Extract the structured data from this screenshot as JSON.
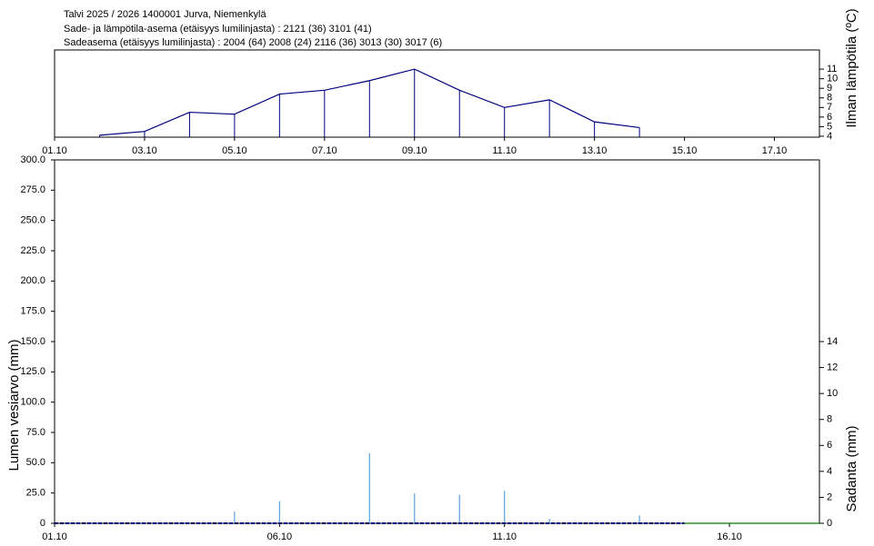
{
  "header": {
    "lines": [
      "Talvi 2025 / 2026 1400001 Jurva, Niemenkylä",
      "Sade- ja lämpötila-asema (etäisyys lumilinjasta) :  2121 (36) 3101 (41)",
      "Sadeasema (etäisyys lumilinjasta) :  2004 (64) 2008 (24) 2116 (36) 3013 (30) 3017 (6)"
    ]
  },
  "chart_data": [
    {
      "type": "line",
      "y2_label": "Ilman lämpötila (ºC)",
      "color": "#00007f",
      "x": [
        2,
        3,
        4,
        5,
        6,
        7,
        8,
        9,
        10,
        11,
        12,
        13,
        14
      ],
      "values": [
        4.1,
        4.5,
        6.5,
        6.3,
        8.4,
        8.8,
        9.8,
        11,
        8.8,
        7,
        7.8,
        5.5,
        4.9
      ],
      "xlim": [
        1,
        18
      ],
      "xticks": [
        {
          "value": 1,
          "label": "01.10"
        },
        {
          "value": 3,
          "label": "03.10"
        },
        {
          "value": 5,
          "label": "05.10"
        },
        {
          "value": 7,
          "label": "07.10"
        },
        {
          "value": 9,
          "label": "09.10"
        },
        {
          "value": 11,
          "label": "11.10"
        },
        {
          "value": 13,
          "label": "13.10"
        },
        {
          "value": 15,
          "label": "15.10"
        },
        {
          "value": 17,
          "label": "17.10"
        }
      ],
      "ylim": [
        3.9,
        13
      ],
      "yticks": [
        4,
        5,
        6,
        7,
        8,
        9,
        10,
        11
      ]
    },
    {
      "type": "bar",
      "y_label": "Lumen vesiarvo (mm)",
      "y2_label": "Sadanta (mm)",
      "xlim": [
        1,
        18
      ],
      "xticks": [
        {
          "value": 1,
          "label": "01.10"
        },
        {
          "value": 6,
          "label": "06.10"
        },
        {
          "value": 11,
          "label": "11.10"
        },
        {
          "value": 16,
          "label": "16.10"
        }
      ],
      "ylim": [
        0,
        300
      ],
      "yticks": [
        0,
        {
          "value": 25,
          "label": "25.0"
        },
        {
          "value": 50,
          "label": "50.0"
        },
        {
          "value": 75,
          "label": "75.0"
        },
        {
          "value": 100,
          "label": "100.0"
        },
        {
          "value": 125,
          "label": "125.0"
        },
        {
          "value": 150,
          "label": "150.0"
        },
        {
          "value": 175,
          "label": "175.0"
        },
        {
          "value": 200,
          "label": "200.0"
        },
        {
          "value": 225,
          "label": "225.0"
        },
        {
          "value": 250,
          "label": "250.0"
        },
        {
          "value": 275,
          "label": "275.0"
        },
        {
          "value": 300,
          "label": "300.0"
        }
      ],
      "y2lim": [
        0,
        28
      ],
      "y2ticks": [
        0,
        2,
        4,
        6,
        8,
        10,
        12,
        14
      ],
      "series": [
        {
          "type": "bar",
          "axis": "y2",
          "color": "#5aa0e0",
          "x": [
            5,
            6,
            8,
            9,
            10,
            11,
            12,
            14
          ],
          "values": [
            0.9,
            1.7,
            5.4,
            2.3,
            2.2,
            2.5,
            0.35,
            0.6
          ]
        },
        {
          "type": "line",
          "color": "#00007f",
          "dashed": true,
          "x": [
            1,
            2,
            3,
            4,
            5,
            6,
            7,
            8,
            9,
            10,
            11,
            12,
            13,
            14,
            15
          ],
          "values": [
            0,
            0,
            0,
            0,
            0,
            0,
            0,
            0,
            0,
            0,
            0,
            0,
            0,
            0,
            0
          ]
        },
        {
          "type": "line",
          "color": "#008000",
          "x": [
            15,
            16,
            17,
            18
          ],
          "values": [
            0,
            0,
            0,
            0
          ]
        }
      ]
    }
  ]
}
